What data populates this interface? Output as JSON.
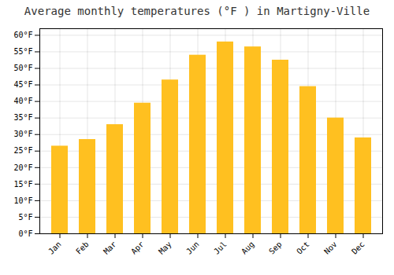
{
  "chart_data": {
    "type": "bar",
    "title": "Average monthly temperatures (°F ) in Martigny-Ville",
    "categories": [
      "Jan",
      "Feb",
      "Mar",
      "Apr",
      "May",
      "Jun",
      "Jul",
      "Aug",
      "Sep",
      "Oct",
      "Nov",
      "Dec"
    ],
    "values": [
      26.5,
      28.5,
      33.0,
      39.5,
      46.5,
      54.0,
      58.0,
      56.5,
      52.5,
      44.5,
      35.0,
      29.0
    ],
    "color": "#FFC020",
    "ylim": [
      0,
      62
    ],
    "yticks": [
      {
        "value": 0,
        "label": "0°F"
      },
      {
        "value": 5,
        "label": "5°F"
      },
      {
        "value": 10,
        "label": "10°F"
      },
      {
        "value": 15,
        "label": "15°F"
      },
      {
        "value": 20,
        "label": "20°F"
      },
      {
        "value": 25,
        "label": "25°F"
      },
      {
        "value": 30,
        "label": "30°F"
      },
      {
        "value": 35,
        "label": "35°F"
      },
      {
        "value": 40,
        "label": "40°F"
      },
      {
        "value": 45,
        "label": "45°F"
      },
      {
        "value": 50,
        "label": "50°F"
      },
      {
        "value": 55,
        "label": "55°F"
      },
      {
        "value": 60,
        "label": "60°F"
      }
    ],
    "grid": true
  }
}
